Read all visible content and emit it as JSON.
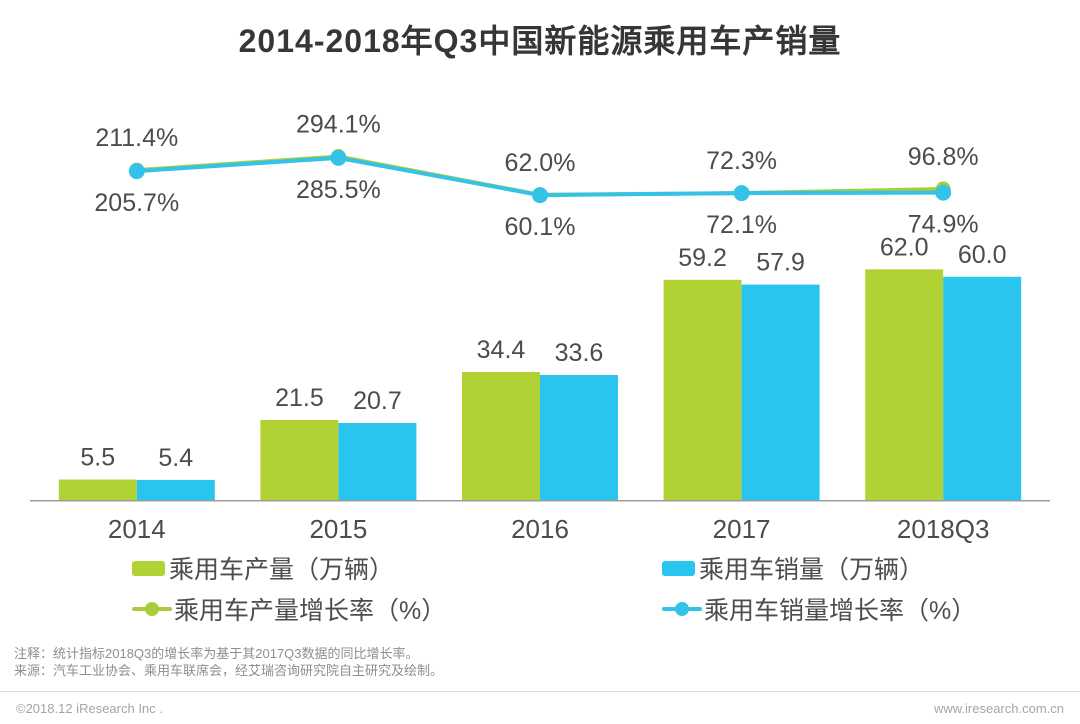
{
  "chart_data": {
    "type": "combo-bar-line",
    "title": "2014-2018年Q3中国新能源乘用车产销量",
    "categories": [
      "2014",
      "2015",
      "2016",
      "2017",
      "2018Q3"
    ],
    "series": [
      {
        "name": "乘用车产量（万辆）",
        "type": "bar",
        "color": "#b1d235",
        "values": [
          5.5,
          21.5,
          34.4,
          59.2,
          62.0
        ],
        "labels": [
          "5.5",
          "21.5",
          "34.4",
          "59.2",
          "62.0"
        ]
      },
      {
        "name": "乘用车销量（万辆）",
        "type": "bar",
        "color": "#29c5ef",
        "values": [
          5.4,
          20.7,
          33.6,
          57.9,
          60.0
        ],
        "labels": [
          "5.4",
          "20.7",
          "33.6",
          "57.9",
          "60.0"
        ]
      },
      {
        "name": "乘用车产量增长率（%）",
        "type": "line",
        "color": "#a9cd39",
        "values": [
          211.4,
          294.1,
          62.0,
          72.3,
          96.8
        ],
        "labels": [
          "211.4%",
          "294.1%",
          "62.0%",
          "72.3%",
          "96.8%"
        ]
      },
      {
        "name": "乘用车销量增长率（%）",
        "type": "line",
        "color": "#35c2e8",
        "values": [
          205.7,
          285.5,
          60.1,
          72.1,
          74.9
        ],
        "labels": [
          "205.7%",
          "285.5%",
          "60.1%",
          "72.1%",
          "74.9%"
        ]
      }
    ],
    "xlabel": "",
    "ylabel": "",
    "bar_unit": "万辆",
    "line_unit": "%",
    "legend_position": "bottom",
    "grid": false,
    "axes_visible": false
  },
  "notes": [
    "注释：统计指标2018Q3的增长率为基于其2017Q3数据的同比增长率。",
    "来源：汽车工业协会、乘用车联席会，经艾瑞咨询研究院自主研究及绘制。"
  ],
  "footer": {
    "left": "©2018.12 iResearch Inc .",
    "right": "www.iresearch.com.cn"
  },
  "colors": {
    "title_text": "#363636",
    "value_label_text": "#4c4c4c",
    "axis_line": "#9c9c9c",
    "note_text": "#8e8e8e",
    "footer_text": "#a5a5a5",
    "background": "#ffffff"
  }
}
